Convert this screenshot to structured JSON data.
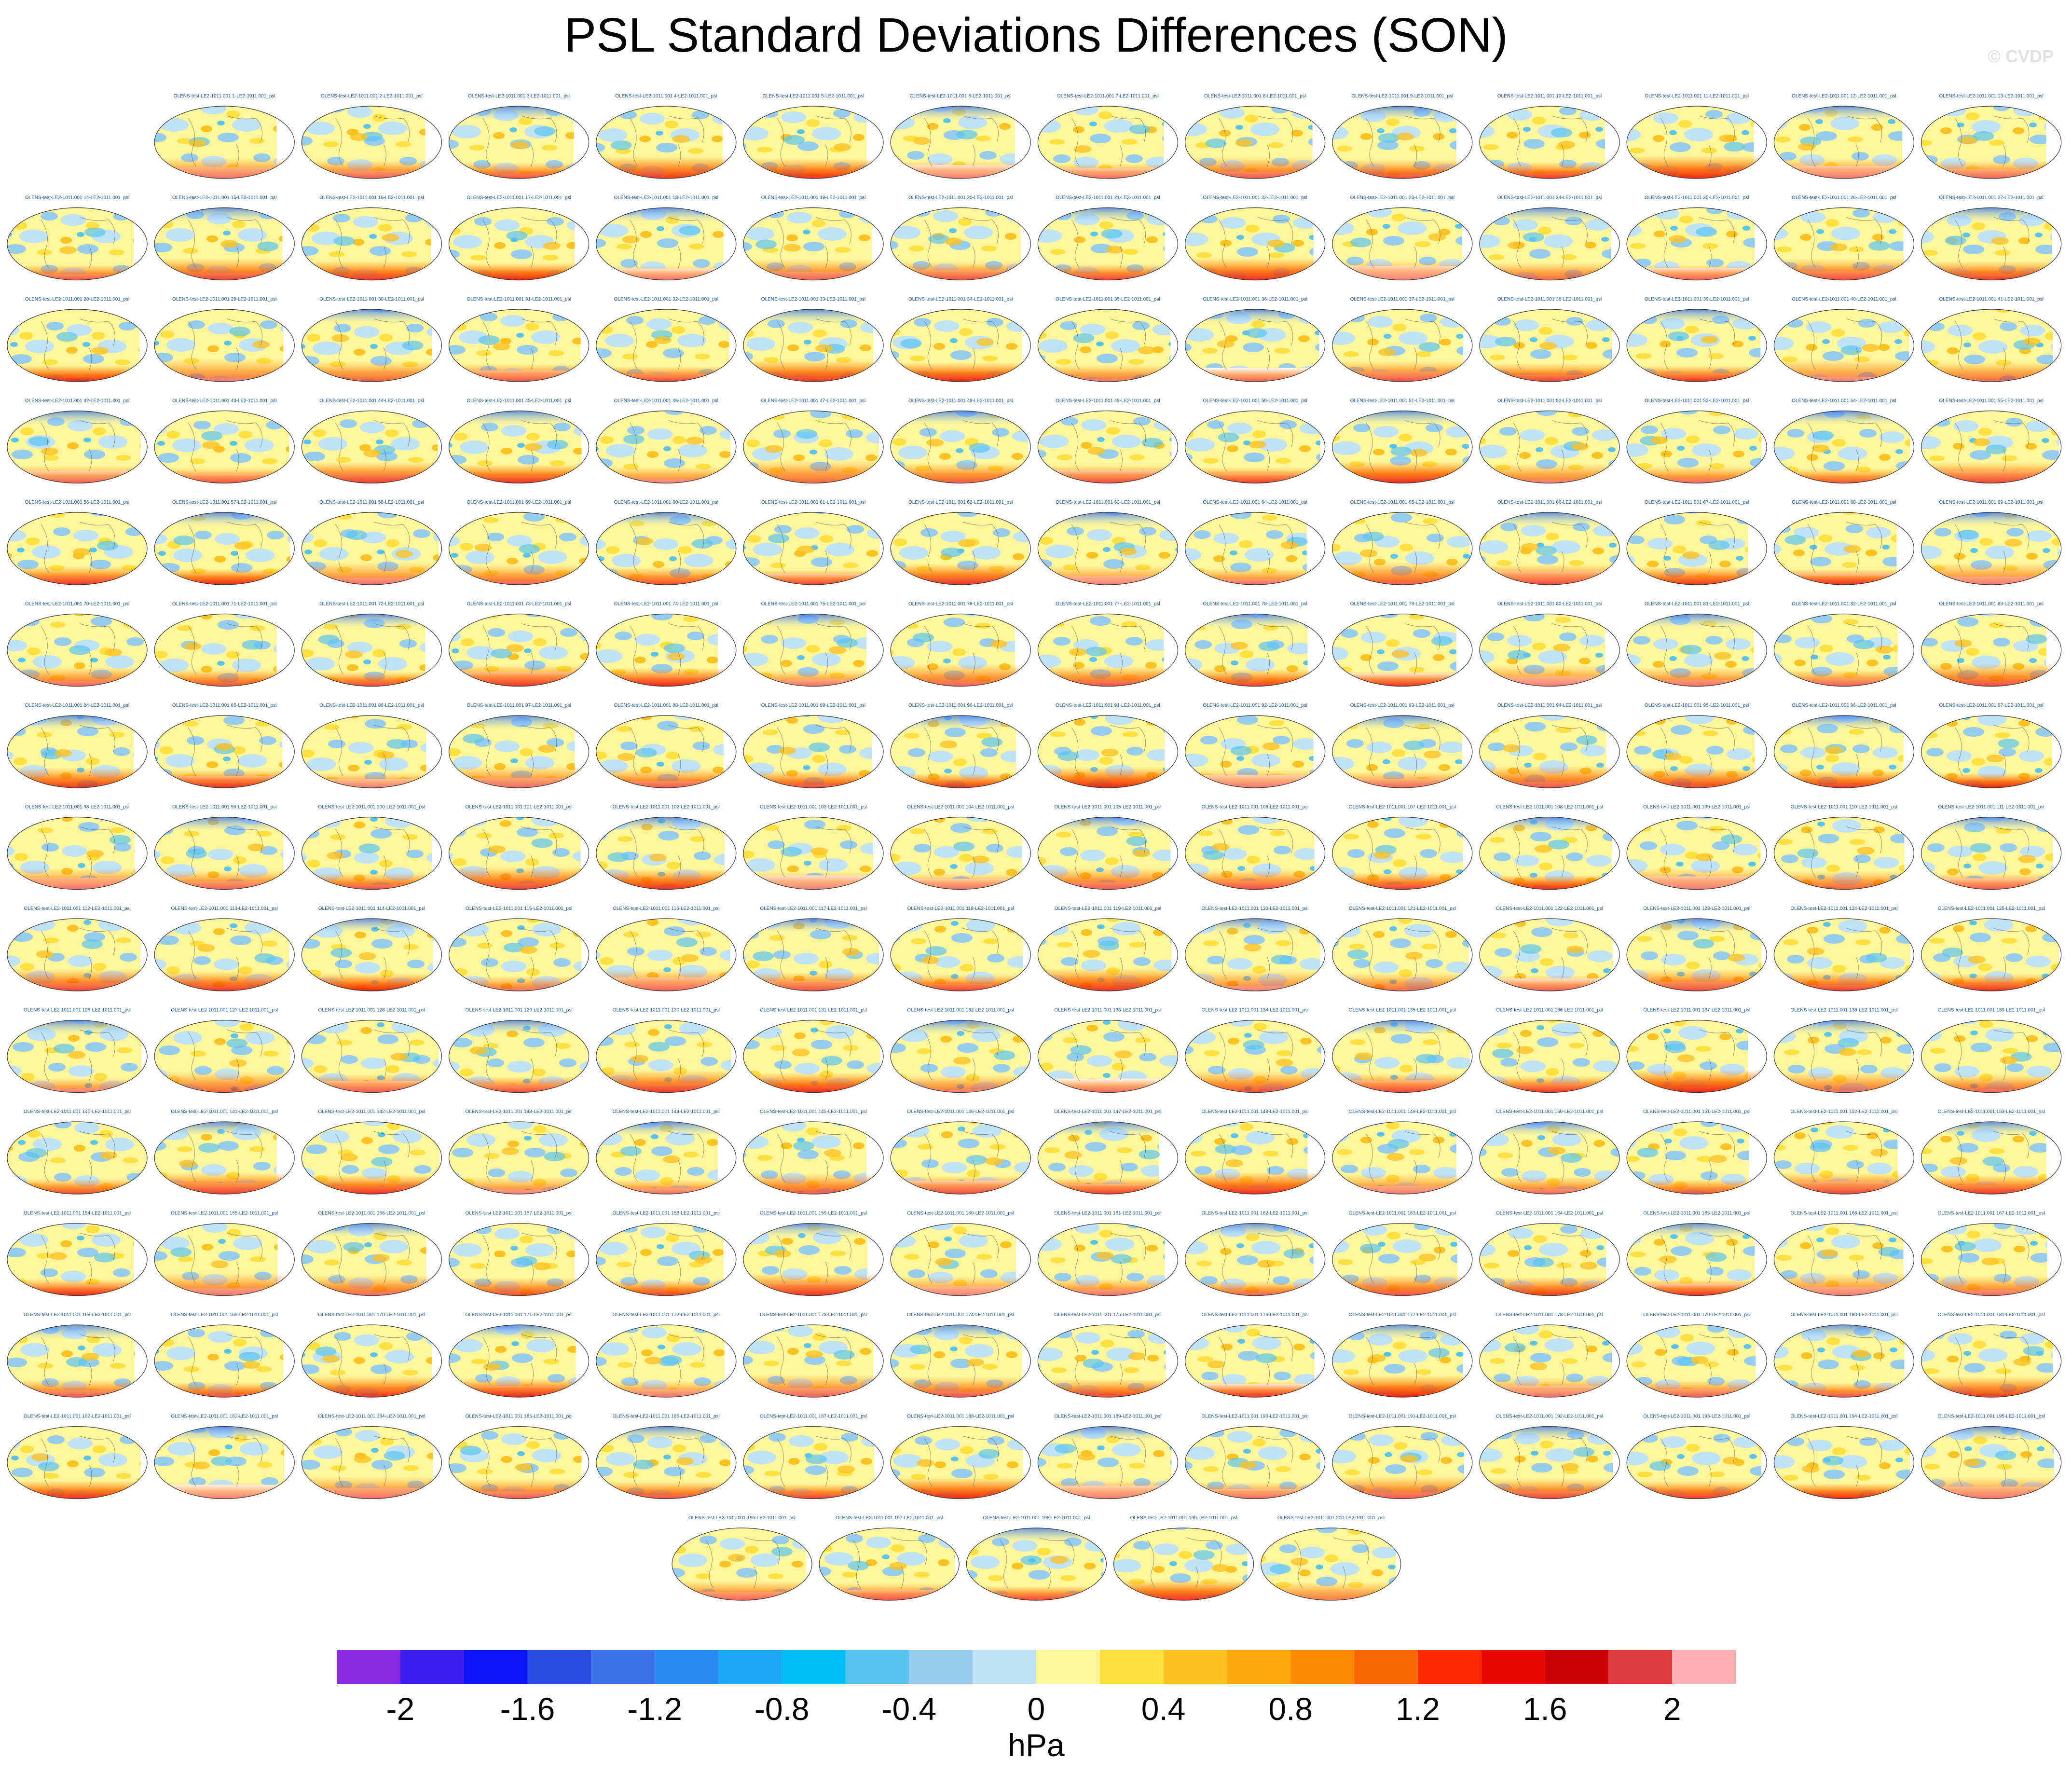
{
  "title": "PSL Standard Deviations Differences (SON)",
  "watermark": "© CVDP",
  "chart_data": {
    "type": "heatmap",
    "description_panels": "map grid",
    "panel_title_prefix": "OLENS-test-LE2-1011.001",
    "panel_title_middle": "-LE2-1011.001_psl",
    "panel_count": 200,
    "colorbar": {
      "unit_label": "hPa",
      "levels": [
        -2.2,
        -2.0,
        -1.8,
        -1.6,
        -1.4,
        -1.2,
        -1.0,
        -0.8,
        -0.6,
        -0.4,
        -0.2,
        0,
        0.2,
        0.4,
        0.6,
        0.8,
        1.0,
        1.2,
        1.4,
        1.6,
        1.8,
        2.0,
        2.2
      ],
      "tick_labels": [
        "-2",
        "-1.6",
        "-1.2",
        "-0.8",
        "-0.4",
        "0",
        "0.4",
        "0.8",
        "1.2",
        "1.6",
        "2"
      ],
      "colors": [
        "#8a2be2",
        "#3a1ef0",
        "#0a14f5",
        "#2a4ce0",
        "#3c74e6",
        "#2a8cf0",
        "#1aa8f5",
        "#00bef5",
        "#5ac4f0",
        "#96cdee",
        "#bfe2f4",
        "#fff59a",
        "#ffe040",
        "#fcc222",
        "#fca80a",
        "#fc8a00",
        "#fc6600",
        "#ff2a00",
        "#e80a00",
        "#c80000",
        "#dc3c3c",
        "#ffb0b0"
      ]
    }
  }
}
